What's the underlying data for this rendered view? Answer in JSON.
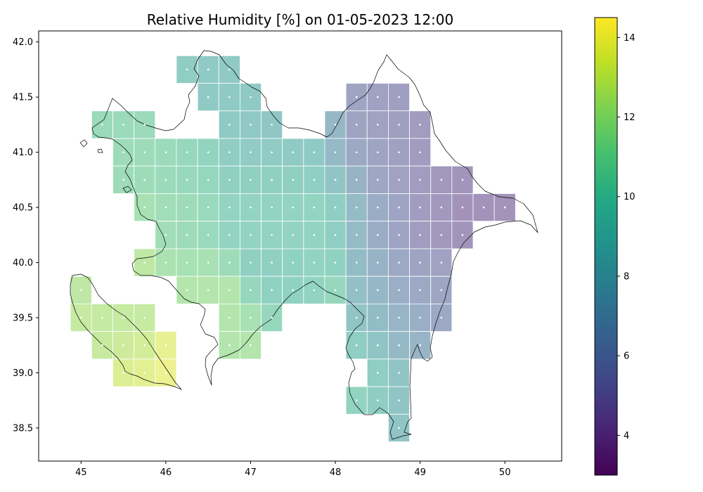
{
  "chart_data": {
    "type": "heatmap",
    "title": "Relative Humidity [%] on 01-05-2023 12:00",
    "xlim": [
      44.5,
      50.67
    ],
    "ylim": [
      38.2,
      42.1
    ],
    "xticks": [
      "45",
      "46",
      "47",
      "48",
      "49",
      "50"
    ],
    "yticks": [
      "38.5",
      "39.0",
      "39.5",
      "40.0",
      "40.5",
      "41.0",
      "41.5",
      "42.0"
    ],
    "colorbar": {
      "label": "",
      "vmin": 3.0,
      "vmax": 14.5,
      "ticks": [
        "4",
        "6",
        "8",
        "10",
        "12",
        "14"
      ],
      "colormap": "viridis"
    },
    "grid_cell_size_deg": 0.25,
    "cell_alpha": 0.5,
    "rows": [
      {
        "lat": 41.75,
        "cells": [
          {
            "lon": 46.25,
            "value": 9.3
          },
          {
            "lon": 46.5,
            "value": 9.0
          },
          {
            "lon": 46.75,
            "value": 9.0
          }
        ]
      },
      {
        "lat": 41.5,
        "cells": [
          {
            "lon": 46.5,
            "value": 9.0
          },
          {
            "lon": 46.75,
            "value": 9.0
          },
          {
            "lon": 47.0,
            "value": 9.0
          },
          {
            "lon": 48.25,
            "value": 5.5
          },
          {
            "lon": 48.5,
            "value": 5.3
          },
          {
            "lon": 48.75,
            "value": 5.1
          }
        ]
      },
      {
        "lat": 41.25,
        "cells": [
          {
            "lon": 45.25,
            "value": 10.6
          },
          {
            "lon": 45.5,
            "value": 10.6
          },
          {
            "lon": 45.75,
            "value": 10.6
          },
          {
            "lon": 46.75,
            "value": 9.0
          },
          {
            "lon": 47.0,
            "value": 8.8
          },
          {
            "lon": 47.25,
            "value": 8.6
          },
          {
            "lon": 48.0,
            "value": 7.2
          },
          {
            "lon": 48.25,
            "value": 5.5
          },
          {
            "lon": 48.5,
            "value": 5.3
          },
          {
            "lon": 48.75,
            "value": 5.1
          },
          {
            "lon": 49.0,
            "value": 4.9
          }
        ]
      },
      {
        "lat": 41.0,
        "cells": [
          {
            "lon": 45.5,
            "value": 10.8
          },
          {
            "lon": 45.75,
            "value": 10.8
          },
          {
            "lon": 46.0,
            "value": 10.6
          },
          {
            "lon": 46.25,
            "value": 10.3
          },
          {
            "lon": 46.5,
            "value": 10.0
          },
          {
            "lon": 46.75,
            "value": 9.3
          },
          {
            "lon": 47.0,
            "value": 9.1
          },
          {
            "lon": 47.25,
            "value": 9.1
          },
          {
            "lon": 47.5,
            "value": 9.0
          },
          {
            "lon": 47.75,
            "value": 9.0
          },
          {
            "lon": 48.0,
            "value": 7.4
          },
          {
            "lon": 48.25,
            "value": 6.0
          },
          {
            "lon": 48.5,
            "value": 5.5
          },
          {
            "lon": 48.75,
            "value": 5.2
          },
          {
            "lon": 49.0,
            "value": 4.9
          }
        ]
      },
      {
        "lat": 40.75,
        "cells": [
          {
            "lon": 45.5,
            "value": 10.8
          },
          {
            "lon": 45.75,
            "value": 10.8
          },
          {
            "lon": 46.0,
            "value": 10.6
          },
          {
            "lon": 46.25,
            "value": 10.4
          },
          {
            "lon": 46.5,
            "value": 10.2
          },
          {
            "lon": 46.75,
            "value": 9.6
          },
          {
            "lon": 47.0,
            "value": 9.6
          },
          {
            "lon": 47.25,
            "value": 9.6
          },
          {
            "lon": 47.5,
            "value": 9.6
          },
          {
            "lon": 47.75,
            "value": 9.5
          },
          {
            "lon": 48.0,
            "value": 8.5
          },
          {
            "lon": 48.25,
            "value": 6.8
          },
          {
            "lon": 48.5,
            "value": 5.8
          },
          {
            "lon": 48.75,
            "value": 5.3
          },
          {
            "lon": 49.0,
            "value": 4.9
          },
          {
            "lon": 49.25,
            "value": 4.6
          },
          {
            "lon": 49.5,
            "value": 4.4
          }
        ]
      },
      {
        "lat": 40.5,
        "cells": [
          {
            "lon": 45.75,
            "value": 11.3
          },
          {
            "lon": 46.0,
            "value": 11.0
          },
          {
            "lon": 46.25,
            "value": 10.8
          },
          {
            "lon": 46.5,
            "value": 10.5
          },
          {
            "lon": 46.75,
            "value": 10.0
          },
          {
            "lon": 47.0,
            "value": 10.0
          },
          {
            "lon": 47.25,
            "value": 10.0
          },
          {
            "lon": 47.5,
            "value": 10.0
          },
          {
            "lon": 47.75,
            "value": 10.0
          },
          {
            "lon": 48.0,
            "value": 9.4
          },
          {
            "lon": 48.25,
            "value": 7.6
          },
          {
            "lon": 48.5,
            "value": 6.3
          },
          {
            "lon": 48.75,
            "value": 5.6
          },
          {
            "lon": 49.0,
            "value": 5.0
          },
          {
            "lon": 49.25,
            "value": 4.6
          },
          {
            "lon": 49.5,
            "value": 4.3
          },
          {
            "lon": 49.75,
            "value": 4.2
          },
          {
            "lon": 50.0,
            "value": 4.2
          }
        ]
      },
      {
        "lat": 40.25,
        "cells": [
          {
            "lon": 46.0,
            "value": 11.0
          },
          {
            "lon": 46.25,
            "value": 10.8
          },
          {
            "lon": 46.5,
            "value": 10.5
          },
          {
            "lon": 46.75,
            "value": 10.0
          },
          {
            "lon": 47.0,
            "value": 10.0
          },
          {
            "lon": 47.25,
            "value": 10.0
          },
          {
            "lon": 47.5,
            "value": 10.0
          },
          {
            "lon": 47.75,
            "value": 10.0
          },
          {
            "lon": 48.0,
            "value": 9.4
          },
          {
            "lon": 48.25,
            "value": 7.6
          },
          {
            "lon": 48.5,
            "value": 6.3
          },
          {
            "lon": 48.75,
            "value": 5.6
          },
          {
            "lon": 49.0,
            "value": 5.0
          },
          {
            "lon": 49.25,
            "value": 4.6
          },
          {
            "lon": 49.5,
            "value": 4.4
          }
        ]
      },
      {
        "lat": 40.0,
        "cells": [
          {
            "lon": 45.75,
            "value": 12.3
          },
          {
            "lon": 46.0,
            "value": 11.5
          },
          {
            "lon": 46.25,
            "value": 11.3
          },
          {
            "lon": 46.5,
            "value": 11.3
          },
          {
            "lon": 46.75,
            "value": 10.8
          },
          {
            "lon": 47.0,
            "value": 9.6
          },
          {
            "lon": 47.25,
            "value": 9.6
          },
          {
            "lon": 47.5,
            "value": 9.8
          },
          {
            "lon": 47.75,
            "value": 10.0
          },
          {
            "lon": 48.0,
            "value": 9.8
          },
          {
            "lon": 48.25,
            "value": 7.8
          },
          {
            "lon": 48.5,
            "value": 6.8
          },
          {
            "lon": 48.75,
            "value": 6.0
          },
          {
            "lon": 49.0,
            "value": 5.5
          },
          {
            "lon": 49.25,
            "value": 5.3
          }
        ]
      },
      {
        "lat": 39.75,
        "cells": [
          {
            "lon": 45.0,
            "value": 12.3
          },
          {
            "lon": 46.25,
            "value": 11.8
          },
          {
            "lon": 46.5,
            "value": 11.8
          },
          {
            "lon": 46.75,
            "value": 11.8
          },
          {
            "lon": 47.0,
            "value": 10.3
          },
          {
            "lon": 47.25,
            "value": 9.8
          },
          {
            "lon": 47.5,
            "value": 9.8
          },
          {
            "lon": 47.75,
            "value": 10.0
          },
          {
            "lon": 48.0,
            "value": 10.3
          },
          {
            "lon": 48.25,
            "value": 8.0
          },
          {
            "lon": 48.5,
            "value": 7.3
          },
          {
            "lon": 48.75,
            "value": 6.5
          },
          {
            "lon": 49.0,
            "value": 6.0
          },
          {
            "lon": 49.25,
            "value": 5.8
          }
        ]
      },
      {
        "lat": 39.5,
        "cells": [
          {
            "lon": 45.0,
            "value": 12.5
          },
          {
            "lon": 45.25,
            "value": 12.5
          },
          {
            "lon": 45.5,
            "value": 12.5
          },
          {
            "lon": 45.75,
            "value": 12.5
          },
          {
            "lon": 46.75,
            "value": 11.8
          },
          {
            "lon": 47.0,
            "value": 11.3
          },
          {
            "lon": 47.25,
            "value": 10.3
          },
          {
            "lon": 48.25,
            "value": 8.5
          },
          {
            "lon": 48.5,
            "value": 7.8
          },
          {
            "lon": 48.75,
            "value": 7.0
          },
          {
            "lon": 49.0,
            "value": 6.5
          },
          {
            "lon": 49.25,
            "value": 6.0
          }
        ]
      },
      {
        "lat": 39.25,
        "cells": [
          {
            "lon": 45.25,
            "value": 12.6
          },
          {
            "lon": 45.5,
            "value": 12.8
          },
          {
            "lon": 45.75,
            "value": 13.0
          },
          {
            "lon": 46.0,
            "value": 13.7
          },
          {
            "lon": 46.75,
            "value": 11.8
          },
          {
            "lon": 47.0,
            "value": 11.8
          },
          {
            "lon": 48.25,
            "value": 9.3
          },
          {
            "lon": 48.5,
            "value": 8.5
          },
          {
            "lon": 48.75,
            "value": 7.5
          },
          {
            "lon": 49.0,
            "value": 7.0
          }
        ]
      },
      {
        "lat": 39.0,
        "cells": [
          {
            "lon": 45.5,
            "value": 13.3
          },
          {
            "lon": 45.75,
            "value": 13.5
          },
          {
            "lon": 46.0,
            "value": 13.9
          },
          {
            "lon": 48.5,
            "value": 9.3
          },
          {
            "lon": 48.75,
            "value": 8.5
          }
        ]
      },
      {
        "lat": 38.75,
        "cells": [
          {
            "lon": 48.25,
            "value": 10.0
          },
          {
            "lon": 48.5,
            "value": 9.3
          },
          {
            "lon": 48.75,
            "value": 8.5
          }
        ]
      },
      {
        "lat": 38.5,
        "cells": [
          {
            "lon": 48.75,
            "value": 8.5
          }
        ]
      }
    ]
  }
}
